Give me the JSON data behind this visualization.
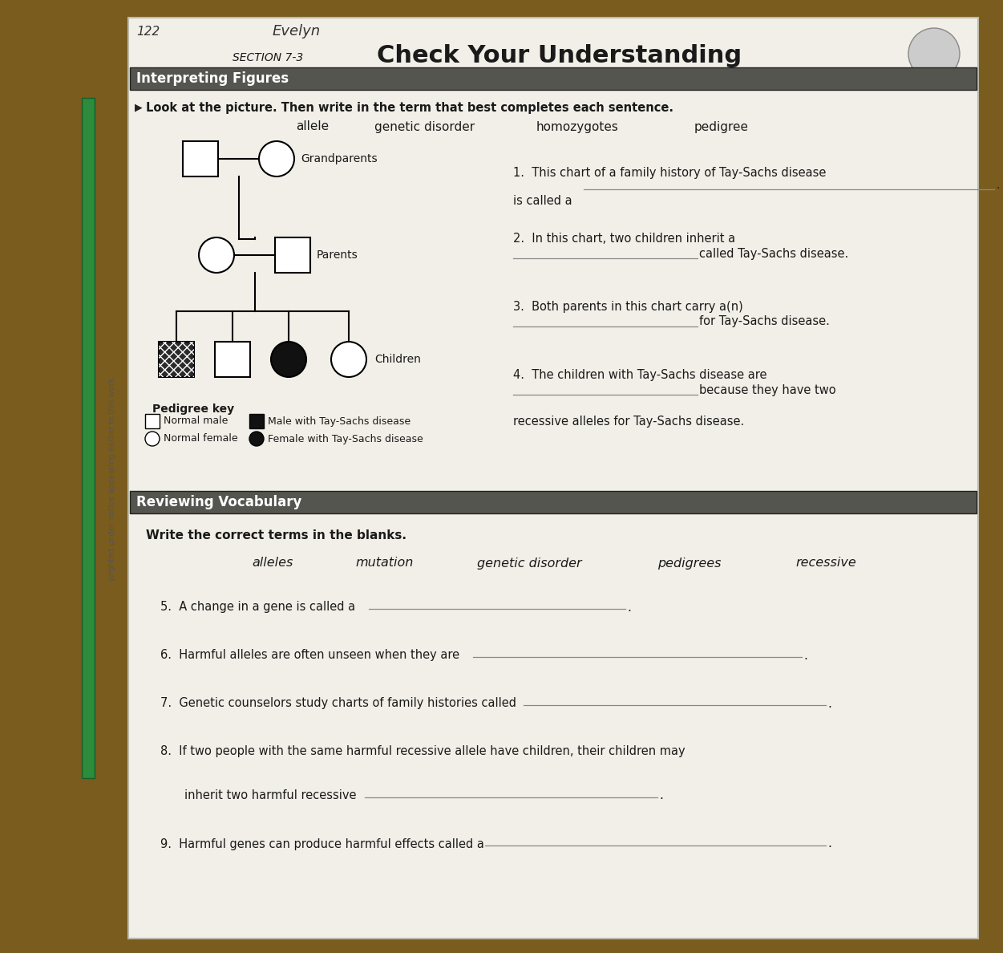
{
  "title": "Check Your Understanding",
  "section": "SECTION 7-3",
  "section1_header": "Interpreting Figures",
  "section1_instruction": "Look at the picture. Then write in the term that best completes each sentence.",
  "section1_words_list": [
    "allele",
    "genetic disorder",
    "homozygotes",
    "pedigree"
  ],
  "section2_header": "Reviewing Vocabulary",
  "section2_instruction": "Write the correct terms in the blanks.",
  "section2_words_list": [
    "alleles",
    "mutation",
    "genetic disorder",
    "pedigrees",
    "recessive"
  ],
  "grandparents_label": "Grandparents",
  "parents_label": "Parents",
  "children_label": "Children",
  "pedigree_key_title": "Pedigree key",
  "key_item1": "Normal male",
  "key_item2": "Male with Tay-Sachs disease",
  "key_item3": "Normal female",
  "key_item4": "Female with Tay-Sachs disease",
  "bg_wood": "#8B6914",
  "paper_color": "#f2efe8",
  "paper_edge": "#ccccbb",
  "text_dark": "#1a1a1a",
  "text_mid": "#333333",
  "header_bar_color": "#555550",
  "line_color": "#666666",
  "line_blank": "#888888"
}
